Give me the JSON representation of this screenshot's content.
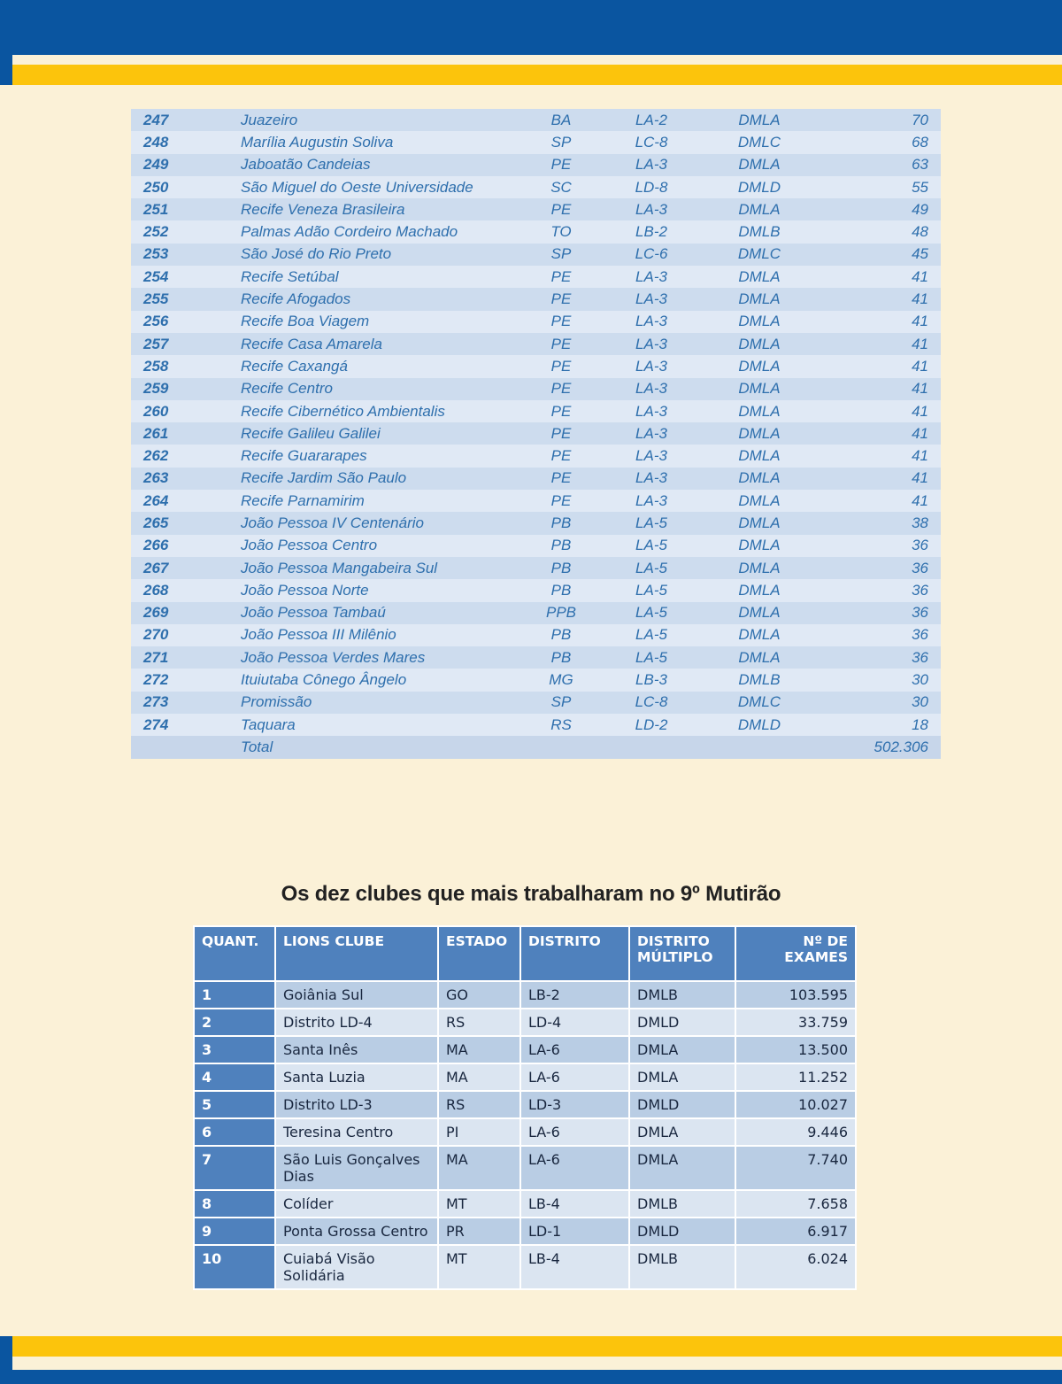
{
  "page": {
    "heading": "Os dez clubes que mais trabalharam no 9º Mutirão"
  },
  "colors": {
    "page_background": "#fbf1d7",
    "brand_blue": "#0a55a0",
    "brand_yellow": "#fcc40c",
    "ranking_text_blue": "#2e6fad",
    "ranking_row_dark": "#cddcee",
    "ranking_row_light": "#e0e9f5",
    "table_header_blue": "#4f81bd",
    "table_row_dark": "#b9cde4",
    "table_row_light": "#dbe5f1"
  },
  "ranking_table": {
    "rows": [
      [
        "247",
        "Juazeiro",
        "BA",
        "LA-2",
        "DMLA",
        "70"
      ],
      [
        "248",
        "Marília Augustin Soliva",
        "SP",
        "LC-8",
        "DMLC",
        "68"
      ],
      [
        "249",
        "Jaboatão Candeias",
        "PE",
        "LA-3",
        "DMLA",
        "63"
      ],
      [
        "250",
        "São Miguel do Oeste Universidade",
        "SC",
        "LD-8",
        "DMLD",
        "55"
      ],
      [
        "251",
        "Recife Veneza Brasileira",
        "PE",
        "LA-3",
        "DMLA",
        "49"
      ],
      [
        "252",
        "Palmas Adão Cordeiro Machado",
        "TO",
        "LB-2",
        "DMLB",
        "48"
      ],
      [
        "253",
        "São José do Rio Preto",
        "SP",
        "LC-6",
        "DMLC",
        "45"
      ],
      [
        "254",
        "Recife Setúbal",
        "PE",
        "LA-3",
        "DMLA",
        "41"
      ],
      [
        "255",
        "Recife Afogados",
        "PE",
        "LA-3",
        "DMLA",
        "41"
      ],
      [
        "256",
        "Recife Boa Viagem",
        "PE",
        "LA-3",
        "DMLA",
        "41"
      ],
      [
        "257",
        "Recife Casa Amarela",
        "PE",
        "LA-3",
        "DMLA",
        "41"
      ],
      [
        "258",
        "Recife Caxangá",
        "PE",
        "LA-3",
        "DMLA",
        "41"
      ],
      [
        "259",
        "Recife Centro",
        "PE",
        "LA-3",
        "DMLA",
        "41"
      ],
      [
        "260",
        "Recife Cibernético Ambientalis",
        "PE",
        "LA-3",
        "DMLA",
        "41"
      ],
      [
        "261",
        "Recife Galileu Galilei",
        "PE",
        "LA-3",
        "DMLA",
        "41"
      ],
      [
        "262",
        "Recife Guararapes",
        "PE",
        "LA-3",
        "DMLA",
        "41"
      ],
      [
        "263",
        "Recife Jardim São Paulo",
        "PE",
        "LA-3",
        "DMLA",
        "41"
      ],
      [
        "264",
        "Recife Parnamirim",
        "PE",
        "LA-3",
        "DMLA",
        "41"
      ],
      [
        "265",
        "João Pessoa IV Centenário",
        "PB",
        "LA-5",
        "DMLA",
        "38"
      ],
      [
        "266",
        "João Pessoa Centro",
        "PB",
        "LA-5",
        "DMLA",
        "36"
      ],
      [
        "267",
        "João Pessoa Mangabeira Sul",
        "PB",
        "LA-5",
        "DMLA",
        "36"
      ],
      [
        "268",
        "João Pessoa Norte",
        "PB",
        "LA-5",
        "DMLA",
        "36"
      ],
      [
        "269",
        "João Pessoa Tambaú",
        "PPB",
        "LA-5",
        "DMLA",
        "36"
      ],
      [
        "270",
        "João Pessoa III Milênio",
        "PB",
        "LA-5",
        "DMLA",
        "36"
      ],
      [
        "271",
        "João Pessoa Verdes Mares",
        "PB",
        "LA-5",
        "DMLA",
        "36"
      ],
      [
        "272",
        "Ituiutaba Cônego Ângelo",
        "MG",
        "LB-3",
        "DMLB",
        "30"
      ],
      [
        "273",
        "Promissão",
        "SP",
        "LC-8",
        "DMLC",
        "30"
      ],
      [
        "274",
        "Taquara",
        "RS",
        "LD-2",
        "DMLD",
        "18"
      ]
    ],
    "total_label": "Total",
    "total_value": "502.306"
  },
  "top_clubs_table": {
    "headers": [
      "QUANT.",
      "LIONS CLUBE",
      "ESTADO",
      "DISTRITO",
      "DISTRITO MÚLTIPLO",
      "Nº DE EXAMES"
    ],
    "rows": [
      [
        "1",
        "Goiânia Sul",
        "GO",
        "LB-2",
        "DMLB",
        "103.595"
      ],
      [
        "2",
        "Distrito LD-4",
        "RS",
        "LD-4",
        "DMLD",
        "33.759"
      ],
      [
        "3",
        "Santa Inês",
        "MA",
        "LA-6",
        "DMLA",
        "13.500"
      ],
      [
        "4",
        "Santa Luzia",
        "MA",
        "LA-6",
        "DMLA",
        "11.252"
      ],
      [
        "5",
        "Distrito LD-3",
        "RS",
        "LD-3",
        "DMLD",
        "10.027"
      ],
      [
        "6",
        "Teresina Centro",
        "PI",
        "LA-6",
        "DMLA",
        "9.446"
      ],
      [
        "7",
        "São Luis Gonçalves Dias",
        "MA",
        "LA-6",
        "DMLA",
        "7.740"
      ],
      [
        "8",
        "Colíder",
        "MT",
        "LB-4",
        "DMLB",
        "7.658"
      ],
      [
        "9",
        "Ponta Grossa Centro",
        "PR",
        "LD-1",
        "DMLD",
        "6.917"
      ],
      [
        "10",
        "Cuiabá Visão Solidária",
        "MT",
        "LB-4",
        "DMLB",
        "6.024"
      ]
    ]
  }
}
